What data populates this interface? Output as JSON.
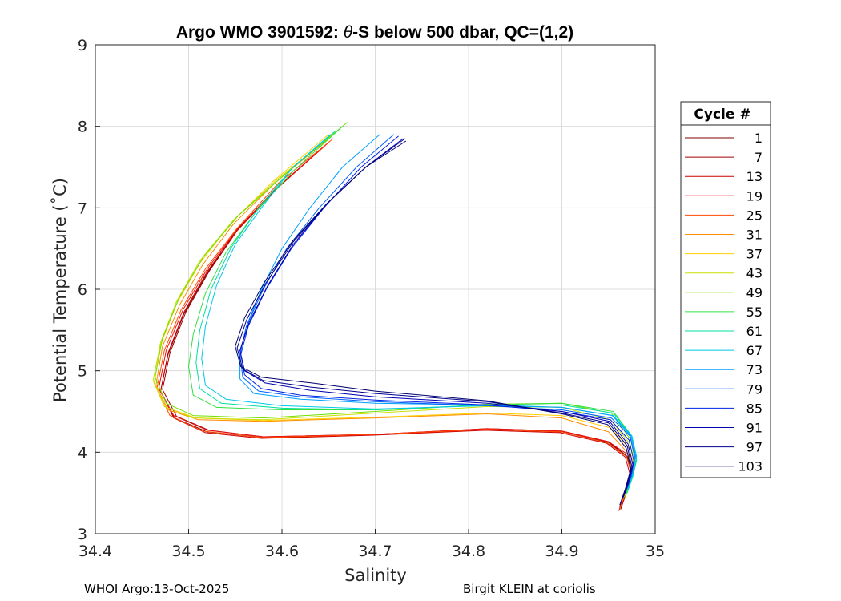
{
  "chart_data": {
    "type": "line",
    "title_prefix": "Argo WMO 3901592: ",
    "title_theta": "θ",
    "title_suffix": "-S below 500 dbar,  QC=(1,2)",
    "xlabel": "Salinity",
    "ylabel": "Potential Temperature (˚C)",
    "xlim": [
      34.4,
      35.0
    ],
    "ylim": [
      3,
      9
    ],
    "x_ticks": [
      34.4,
      34.5,
      34.6,
      34.7,
      34.8,
      34.9,
      35.0
    ],
    "x_tick_labels": [
      "34.4",
      "34.5",
      "34.6",
      "34.7",
      "34.8",
      "34.9",
      "35"
    ],
    "y_ticks": [
      3,
      4,
      5,
      6,
      7,
      8,
      9
    ],
    "y_tick_labels": [
      "3",
      "4",
      "5",
      "6",
      "7",
      "8",
      "9"
    ],
    "grid": true,
    "legend_title": "Cycle #",
    "legend_position": "right",
    "series": [
      {
        "name": "1",
        "color": "#800000",
        "s": [
          34.963,
          34.969,
          34.975,
          34.97,
          34.95,
          34.9,
          34.82,
          34.7,
          34.58,
          34.52,
          34.485,
          34.47,
          34.478,
          34.495,
          34.52,
          34.55,
          34.59,
          34.64
        ],
        "t": [
          3.3,
          3.5,
          3.75,
          3.95,
          4.12,
          4.25,
          4.28,
          4.22,
          4.18,
          4.25,
          4.42,
          4.75,
          5.2,
          5.7,
          6.2,
          6.7,
          7.2,
          7.7
        ]
      },
      {
        "name": "7",
        "color": "#a00000",
        "s": [
          34.962,
          34.968,
          34.974,
          34.969,
          34.95,
          34.9,
          34.82,
          34.7,
          34.58,
          34.522,
          34.487,
          34.472,
          34.48,
          34.497,
          34.522,
          34.552,
          34.592,
          34.642
        ],
        "t": [
          3.32,
          3.52,
          3.76,
          3.96,
          4.13,
          4.26,
          4.29,
          4.22,
          4.19,
          4.27,
          4.44,
          4.77,
          5.22,
          5.72,
          6.22,
          6.72,
          7.22,
          7.72
        ]
      },
      {
        "name": "13",
        "color": "#cc0000",
        "s": [
          34.961,
          34.967,
          34.973,
          34.968,
          34.948,
          34.898,
          34.818,
          34.698,
          34.578,
          34.518,
          34.484,
          34.47,
          34.478,
          34.495,
          34.52,
          34.552,
          34.593,
          34.645
        ],
        "t": [
          3.28,
          3.48,
          3.73,
          3.94,
          4.11,
          4.24,
          4.27,
          4.21,
          4.17,
          4.24,
          4.42,
          4.75,
          5.22,
          5.72,
          6.22,
          6.72,
          7.22,
          7.75
        ]
      },
      {
        "name": "19",
        "color": "#ee1010",
        "s": [
          34.964,
          34.97,
          34.976,
          34.971,
          34.95,
          34.9,
          34.82,
          34.7,
          34.58,
          34.52,
          34.484,
          34.468,
          34.476,
          34.494,
          34.52,
          34.553,
          34.595,
          34.65
        ],
        "t": [
          3.35,
          3.55,
          3.78,
          3.97,
          4.13,
          4.26,
          4.29,
          4.22,
          4.19,
          4.27,
          4.45,
          4.78,
          5.25,
          5.75,
          6.25,
          6.75,
          7.25,
          7.8
        ]
      },
      {
        "name": "25",
        "color": "#ff4a00",
        "s": [
          34.962,
          34.968,
          34.975,
          34.969,
          34.948,
          34.9,
          34.82,
          34.7,
          34.58,
          34.515,
          34.48,
          34.466,
          34.474,
          34.492,
          34.518,
          34.552,
          34.596,
          34.655
        ],
        "t": [
          3.3,
          3.5,
          3.75,
          3.95,
          4.12,
          4.25,
          4.28,
          4.22,
          4.18,
          4.26,
          4.45,
          4.78,
          5.25,
          5.75,
          6.25,
          6.75,
          7.3,
          7.85
        ]
      },
      {
        "name": "31",
        "color": "#ff8c00",
        "s": [
          34.965,
          34.97,
          34.976,
          34.97,
          34.95,
          34.9,
          34.82,
          34.7,
          34.58,
          34.51,
          34.478,
          34.465,
          34.472,
          34.49,
          34.515,
          34.548,
          34.592,
          34.65
        ],
        "t": [
          3.4,
          3.6,
          3.8,
          4.0,
          4.25,
          4.42,
          4.47,
          4.42,
          4.38,
          4.4,
          4.52,
          4.82,
          5.3,
          5.8,
          6.3,
          6.8,
          7.3,
          7.85
        ]
      },
      {
        "name": "37",
        "color": "#ffd000",
        "s": [
          34.966,
          34.972,
          34.977,
          34.972,
          34.952,
          34.9,
          34.82,
          34.7,
          34.58,
          34.508,
          34.476,
          34.463,
          34.47,
          34.487,
          34.512,
          34.546,
          34.59,
          34.65
        ],
        "t": [
          3.45,
          3.65,
          3.85,
          4.05,
          4.3,
          4.45,
          4.48,
          4.43,
          4.39,
          4.42,
          4.55,
          4.85,
          5.32,
          5.82,
          6.32,
          6.82,
          7.32,
          7.9
        ]
      },
      {
        "name": "43",
        "color": "#c8e000",
        "s": [
          34.967,
          34.973,
          34.978,
          34.973,
          34.952,
          34.9,
          34.82,
          34.7,
          34.58,
          34.505,
          34.474,
          34.462,
          34.47,
          34.487,
          34.512,
          34.548,
          34.595,
          34.66
        ],
        "t": [
          3.45,
          3.65,
          3.85,
          4.1,
          4.4,
          4.55,
          4.56,
          4.48,
          4.4,
          4.42,
          4.56,
          4.88,
          5.35,
          5.85,
          6.35,
          6.85,
          7.35,
          7.95
        ]
      },
      {
        "name": "49",
        "color": "#70e000",
        "s": [
          34.968,
          34.974,
          34.979,
          34.974,
          34.953,
          34.9,
          34.82,
          34.7,
          34.58,
          34.505,
          34.476,
          34.464,
          34.472,
          34.49,
          34.516,
          34.553,
          34.602,
          34.67
        ],
        "t": [
          3.45,
          3.65,
          3.85,
          4.15,
          4.48,
          4.6,
          4.59,
          4.5,
          4.42,
          4.45,
          4.6,
          4.92,
          5.4,
          5.9,
          6.4,
          6.9,
          7.4,
          8.05
        ]
      },
      {
        "name": "55",
        "color": "#30e040",
        "s": [
          34.969,
          34.975,
          34.98,
          34.975,
          34.955,
          34.9,
          34.82,
          34.7,
          34.6,
          34.53,
          34.505,
          34.5,
          34.505,
          34.518,
          34.54,
          34.572,
          34.612,
          34.665
        ],
        "t": [
          3.5,
          3.7,
          3.9,
          4.2,
          4.5,
          4.6,
          4.58,
          4.52,
          4.52,
          4.55,
          4.7,
          5.05,
          5.45,
          5.95,
          6.45,
          6.95,
          7.45,
          8.0
        ]
      },
      {
        "name": "61",
        "color": "#00e0a0",
        "s": [
          34.97,
          34.976,
          34.98,
          34.975,
          34.955,
          34.9,
          34.82,
          34.7,
          34.6,
          34.535,
          34.512,
          34.508,
          34.512,
          34.524,
          34.545,
          34.575,
          34.612,
          34.658
        ],
        "t": [
          3.5,
          3.7,
          3.9,
          4.2,
          4.48,
          4.58,
          4.58,
          4.52,
          4.54,
          4.6,
          4.78,
          5.1,
          5.5,
          6.0,
          6.5,
          7.0,
          7.5,
          7.95
        ]
      },
      {
        "name": "67",
        "color": "#00c8e8",
        "s": [
          34.971,
          34.977,
          34.98,
          34.975,
          34.955,
          34.9,
          34.82,
          34.7,
          34.6,
          34.54,
          34.518,
          34.514,
          34.518,
          34.53,
          34.55,
          34.578,
          34.612,
          34.652
        ],
        "t": [
          3.55,
          3.75,
          3.95,
          4.2,
          4.45,
          4.55,
          4.57,
          4.53,
          4.57,
          4.65,
          4.82,
          5.15,
          5.55,
          6.05,
          6.55,
          7.0,
          7.5,
          7.9
        ]
      },
      {
        "name": "73",
        "color": "#00a0ff",
        "s": [
          34.97,
          34.976,
          34.979,
          34.974,
          34.954,
          34.9,
          34.82,
          34.7,
          34.62,
          34.57,
          34.555,
          34.555,
          34.562,
          34.578,
          34.6,
          34.63,
          34.665,
          34.705
        ],
        "t": [
          3.55,
          3.75,
          3.95,
          4.2,
          4.45,
          4.55,
          4.58,
          4.6,
          4.65,
          4.72,
          4.9,
          5.2,
          5.55,
          6.0,
          6.5,
          7.0,
          7.5,
          7.9
        ]
      },
      {
        "name": "79",
        "color": "#0060ff",
        "s": [
          34.969,
          34.975,
          34.978,
          34.973,
          34.953,
          34.9,
          34.82,
          34.7,
          34.62,
          34.575,
          34.558,
          34.555,
          34.562,
          34.58,
          34.605,
          34.64,
          34.68,
          34.72
        ],
        "t": [
          3.55,
          3.75,
          3.95,
          4.2,
          4.42,
          4.52,
          4.57,
          4.62,
          4.68,
          4.75,
          4.92,
          5.2,
          5.55,
          6.0,
          6.5,
          7.0,
          7.5,
          7.9
        ]
      },
      {
        "name": "85",
        "color": "#0020e0",
        "s": [
          34.968,
          34.974,
          34.977,
          34.972,
          34.952,
          34.9,
          34.82,
          34.7,
          34.62,
          34.578,
          34.56,
          34.556,
          34.564,
          34.583,
          34.61,
          34.645,
          34.685,
          34.725
        ],
        "t": [
          3.5,
          3.7,
          3.9,
          4.15,
          4.4,
          4.5,
          4.58,
          4.64,
          4.7,
          4.78,
          4.95,
          5.2,
          5.55,
          6.0,
          6.5,
          7.0,
          7.5,
          7.88
        ]
      },
      {
        "name": "91",
        "color": "#0000b0",
        "s": [
          34.966,
          34.972,
          34.976,
          34.971,
          34.951,
          34.9,
          34.82,
          34.7,
          34.63,
          34.582,
          34.56,
          34.555,
          34.565,
          34.585,
          34.612,
          34.648,
          34.69,
          34.73
        ],
        "t": [
          3.45,
          3.65,
          3.85,
          4.1,
          4.38,
          4.5,
          4.6,
          4.68,
          4.76,
          4.85,
          5.0,
          5.25,
          5.6,
          6.05,
          6.55,
          7.05,
          7.5,
          7.85
        ]
      },
      {
        "name": "97",
        "color": "#000090",
        "s": [
          34.964,
          34.97,
          34.975,
          34.97,
          34.95,
          34.9,
          34.82,
          34.7,
          34.63,
          34.58,
          34.558,
          34.552,
          34.562,
          34.583,
          34.612,
          34.648,
          34.69,
          34.732
        ],
        "t": [
          3.4,
          3.6,
          3.82,
          4.08,
          4.36,
          4.48,
          4.62,
          4.72,
          4.8,
          4.88,
          5.02,
          5.28,
          5.62,
          6.08,
          6.58,
          7.05,
          7.5,
          7.85
        ]
      },
      {
        "name": "103",
        "color": "#000070",
        "s": [
          34.962,
          34.968,
          34.974,
          34.969,
          34.949,
          34.9,
          34.82,
          34.7,
          34.632,
          34.578,
          34.556,
          34.55,
          34.56,
          34.582,
          34.612,
          34.648,
          34.69,
          34.733
        ],
        "t": [
          3.35,
          3.55,
          3.8,
          4.05,
          4.34,
          4.47,
          4.63,
          4.75,
          4.85,
          4.92,
          5.05,
          5.3,
          5.65,
          6.1,
          6.6,
          7.05,
          7.5,
          7.82
        ]
      }
    ]
  },
  "footer": {
    "left": "WHOI Argo:13-Oct-2025",
    "right": "Birgit KLEIN at coriolis"
  }
}
